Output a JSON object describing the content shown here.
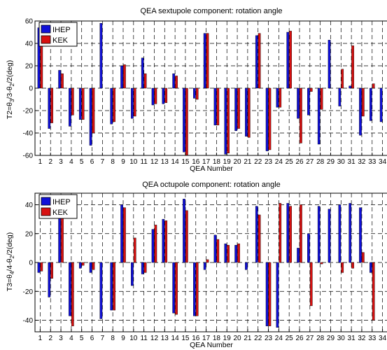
{
  "colors": {
    "IHEP": "#1010d8",
    "KEK": "#d81010",
    "edge": "#000000"
  },
  "chart_data": [
    {
      "type": "bar",
      "title": "QEA sextupole component: rotation angle",
      "xlabel": "QEA Number",
      "ylabel": "T2=θ_3/3-θ_2/2(deg)",
      "ylabel_parts": {
        "pre": "T2=θ",
        "sub1": "3",
        "mid": "/3-θ",
        "sub2": "2",
        "post": "/2(deg)"
      },
      "ylim": [
        -60,
        60
      ],
      "yticks": [
        -60,
        -40,
        -20,
        0,
        20,
        40,
        60
      ],
      "grid": "dashed",
      "legend": "top-left",
      "categories": [
        "1",
        "2",
        "3",
        "4",
        "5",
        "6",
        "7",
        "8",
        "9",
        "10",
        "11",
        "12",
        "13",
        "14",
        "15",
        "16",
        "17",
        "18",
        "19",
        "20",
        "21",
        "22",
        "23",
        "24",
        "25",
        "26",
        "27",
        "28",
        "29",
        "30",
        "31",
        "32",
        "33",
        "34"
      ],
      "series": [
        {
          "name": "IHEP",
          "values": [
            54,
            -36,
            16,
            -34,
            -28,
            -51,
            58,
            -32,
            20,
            -27,
            27,
            -15,
            -14,
            13,
            -57,
            -9,
            49,
            -33,
            -59,
            -38,
            -43,
            47,
            -56,
            -17,
            50,
            -27,
            -24,
            -50,
            43,
            -16,
            2,
            -42,
            -29,
            -30
          ]
        },
        {
          "name": "KEK",
          "values": [
            40,
            -31,
            13,
            -24,
            -28,
            -40,
            0,
            -30,
            21,
            -25,
            13,
            -14,
            -13,
            11,
            -60,
            -10,
            49,
            -33,
            -58,
            -36,
            -44,
            49,
            -55,
            -17,
            51,
            -49,
            -3,
            -19,
            0,
            17,
            38,
            -25,
            4,
            0
          ]
        }
      ]
    },
    {
      "type": "bar",
      "title": "QEA octupole component: rotation angle",
      "xlabel": "QEA Number",
      "ylabel": "T3=θ_4/4-θ_2/2(deg)",
      "ylabel_parts": {
        "pre": "T3=θ",
        "sub1": "4",
        "mid": "/4-θ",
        "sub2": "2",
        "post": "/2(deg)"
      },
      "ylim": [
        -48,
        48
      ],
      "yticks": [
        -40,
        -20,
        0,
        20,
        40
      ],
      "grid": "dashed",
      "legend": "top-left",
      "categories": [
        "1",
        "2",
        "3",
        "4",
        "5",
        "6",
        "7",
        "8",
        "9",
        "10",
        "11",
        "12",
        "13",
        "14",
        "15",
        "16",
        "17",
        "18",
        "19",
        "20",
        "21",
        "22",
        "23",
        "24",
        "25",
        "26",
        "27",
        "28",
        "29",
        "30",
        "31",
        "32",
        "33",
        "34"
      ],
      "series": [
        {
          "name": "IHEP",
          "values": [
            -7,
            -24,
            35,
            -37,
            -4,
            -7,
            -39,
            -33,
            40,
            -16,
            -8,
            23,
            30,
            -35,
            44,
            -37,
            -5,
            19,
            13,
            12,
            -5,
            39,
            -44,
            -45,
            41,
            10,
            20,
            39,
            37,
            40,
            41,
            38,
            -7,
            0
          ]
        },
        {
          "name": "KEK",
          "values": [
            -6,
            -11,
            40,
            -44,
            -2,
            -5,
            0,
            -33,
            38,
            17,
            -7,
            26,
            29,
            -36,
            36,
            -37,
            2,
            16,
            12,
            13,
            0,
            33,
            -44,
            41,
            39,
            40,
            -30,
            -1,
            0,
            -7,
            -4,
            7,
            -40,
            0
          ]
        }
      ]
    }
  ]
}
